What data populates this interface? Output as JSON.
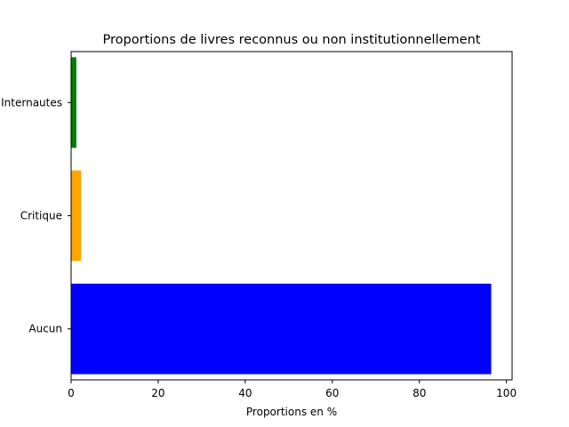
{
  "chart_data": {
    "type": "bar",
    "orientation": "horizontal",
    "title": "Proportions de livres reconnus ou non institutionnellement",
    "xlabel": "Proportions en %",
    "ylabel": "",
    "categories": [
      "Aucun",
      "Critique",
      "Internautes"
    ],
    "values": [
      96.5,
      2.3,
      1.2
    ],
    "colors": [
      "#0000ff",
      "#ffa500",
      "#008000"
    ],
    "xlim": [
      0,
      101.3
    ],
    "xticks": [
      0,
      20,
      40,
      60,
      80,
      100
    ],
    "grid": false,
    "legend": false
  }
}
